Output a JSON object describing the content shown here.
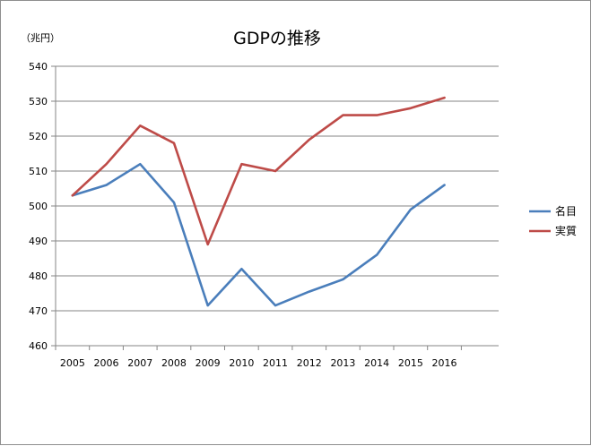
{
  "chart_data": {
    "type": "line",
    "title": "GDPの推移",
    "ylabel": "（兆円）",
    "xlabel": "",
    "categories": [
      "2005",
      "2006",
      "2007",
      "2008",
      "2009",
      "2010",
      "2011",
      "2012",
      "2013",
      "2014",
      "2015",
      "2016"
    ],
    "series": [
      {
        "name": "名目",
        "color": "#4a7ebb",
        "values": [
          503,
          506,
          512,
          501,
          471.5,
          482,
          471.5,
          475.5,
          479,
          486,
          499,
          506
        ]
      },
      {
        "name": "実質",
        "color": "#be4b48",
        "values": [
          503,
          512,
          523,
          518,
          489,
          512,
          510,
          519,
          526,
          526,
          528,
          531
        ]
      }
    ],
    "ylim": [
      460,
      540
    ],
    "ytick_step": 10,
    "grid": "horizontal",
    "legend_position": "right"
  }
}
